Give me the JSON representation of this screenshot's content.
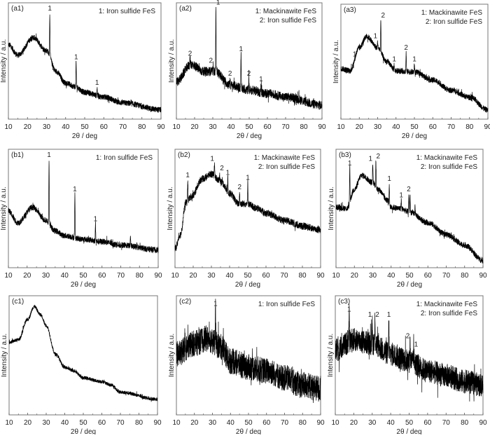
{
  "chart_data": [
    {
      "id": "a1",
      "type": "line",
      "tag": "(a1)",
      "legend": [
        "1: Iron sulfide FeS"
      ],
      "xlabel": "2θ / deg",
      "ylabel": "Intensity / a.u.",
      "xlim": [
        10,
        90
      ],
      "xticks": [
        10,
        20,
        30,
        40,
        50,
        60,
        70,
        80,
        90
      ],
      "ylim": [
        0,
        100
      ],
      "noise": 2.5,
      "baseline": [
        [
          10,
          64
        ],
        [
          15,
          55
        ],
        [
          23,
          70
        ],
        [
          30,
          59
        ],
        [
          35,
          41
        ],
        [
          40,
          31
        ],
        [
          45,
          28
        ],
        [
          50,
          23
        ],
        [
          60,
          19
        ],
        [
          70,
          14
        ],
        [
          90,
          8
        ]
      ],
      "peaks": [
        {
          "x": 31.7,
          "y": 91,
          "label": "1"
        },
        {
          "x": 45.5,
          "y": 49,
          "label": "1"
        },
        {
          "x": 56.5,
          "y": 27,
          "label": "1"
        }
      ]
    },
    {
      "id": "a2",
      "type": "line",
      "tag": "(a2)",
      "legend": [
        "1: Mackinawite FeS",
        "2: Iron sulfide FeS"
      ],
      "xlabel": "2θ / deg",
      "ylabel": "Intensity / a.u.",
      "xlim": [
        10,
        90
      ],
      "xticks": [
        10,
        20,
        30,
        40,
        50,
        60,
        70,
        80,
        90
      ],
      "ylim": [
        0,
        100
      ],
      "noise": 4,
      "baseline": [
        [
          10,
          32
        ],
        [
          18,
          47
        ],
        [
          25,
          41
        ],
        [
          31,
          41
        ],
        [
          40,
          29
        ],
        [
          50,
          25
        ],
        [
          60,
          22
        ],
        [
          70,
          19
        ],
        [
          90,
          12
        ]
      ],
      "peaks": [
        {
          "x": 17.5,
          "y": 52,
          "label": "2"
        },
        {
          "x": 30.2,
          "y": 46,
          "label": "2"
        },
        {
          "x": 31.7,
          "y": 96,
          "label": "1"
        },
        {
          "x": 39.5,
          "y": 35,
          "label": "2"
        },
        {
          "x": 45.5,
          "y": 56,
          "label": "1"
        },
        {
          "x": 49.8,
          "y": 35,
          "label": "2"
        },
        {
          "x": 56.5,
          "y": 30,
          "label": "1"
        }
      ]
    },
    {
      "id": "a3",
      "type": "line",
      "tag": "(a3)",
      "legend": [
        "1: Mackinawite FeS",
        "2: Iron sulfide FeS"
      ],
      "xlabel": "2θ / deg",
      "ylabel": "Intensity / a.u.",
      "xlim": [
        10,
        90
      ],
      "xticks": [
        10,
        20,
        30,
        40,
        50,
        60,
        70,
        80,
        90
      ],
      "ylim": [
        0,
        100
      ],
      "noise": 2.5,
      "baseline": [
        [
          10,
          44
        ],
        [
          15,
          42
        ],
        [
          20,
          62
        ],
        [
          24,
          72
        ],
        [
          30,
          62
        ],
        [
          35,
          50
        ],
        [
          40,
          42
        ],
        [
          50,
          41
        ],
        [
          60,
          34
        ],
        [
          70,
          25
        ],
        [
          80,
          19
        ],
        [
          90,
          8
        ]
      ],
      "peaks": [
        {
          "x": 17.5,
          "y": 52,
          "label": "1"
        },
        {
          "x": 30,
          "y": 68,
          "label": "1"
        },
        {
          "x": 31.7,
          "y": 86,
          "label": "2"
        },
        {
          "x": 39,
          "y": 48,
          "label": "1"
        },
        {
          "x": 45.5,
          "y": 58,
          "label": "2"
        },
        {
          "x": 50,
          "y": 48,
          "label": "1"
        }
      ]
    },
    {
      "id": "b1",
      "type": "line",
      "tag": "(b1)",
      "legend": [
        "1: Iron sulfide FeS"
      ],
      "xlabel": "2θ / deg",
      "ylabel": "Intensity / a.u.",
      "xlim": [
        10,
        90
      ],
      "xticks": [
        10,
        20,
        30,
        40,
        50,
        60,
        70,
        80,
        90
      ],
      "ylim": [
        0,
        100
      ],
      "noise": 2.5,
      "baseline": [
        [
          10,
          48
        ],
        [
          15,
          38
        ],
        [
          23,
          51
        ],
        [
          30,
          40
        ],
        [
          35,
          31
        ],
        [
          40,
          27
        ],
        [
          50,
          24
        ],
        [
          60,
          22
        ],
        [
          70,
          19
        ],
        [
          90,
          15
        ]
      ],
      "peaks": [
        {
          "x": 31.7,
          "y": 91,
          "label": "1"
        },
        {
          "x": 45.5,
          "y": 62,
          "label": "1"
        },
        {
          "x": 56.5,
          "y": 37,
          "label": "1"
        },
        {
          "x": 75.2,
          "y": 27,
          "label": ""
        }
      ]
    },
    {
      "id": "b2",
      "type": "line",
      "tag": "(b2)",
      "legend": [
        "1: Mackinawite FeS",
        "2: Iron sulfide FeS"
      ],
      "xlabel": "2θ / deg",
      "ylabel": "Intensity / a.u.",
      "xlim": [
        10,
        90
      ],
      "xticks": [
        10,
        20,
        30,
        40,
        50,
        60,
        70,
        80,
        90
      ],
      "ylim": [
        0,
        100
      ],
      "noise": 3,
      "baseline": [
        [
          10,
          16
        ],
        [
          13,
          28
        ],
        [
          16,
          55
        ],
        [
          19,
          60
        ],
        [
          25,
          75
        ],
        [
          30,
          79
        ],
        [
          35,
          73
        ],
        [
          40,
          63
        ],
        [
          45,
          54
        ],
        [
          50,
          54
        ],
        [
          55,
          50
        ],
        [
          60,
          46
        ],
        [
          70,
          40
        ],
        [
          80,
          35
        ],
        [
          90,
          32
        ]
      ],
      "peaks": [
        {
          "x": 17,
          "y": 74,
          "label": "1"
        },
        {
          "x": 31.7,
          "y": 88,
          "label": "1"
        },
        {
          "x": 34.5,
          "y": 80,
          "label": "2"
        },
        {
          "x": 39,
          "y": 76,
          "label": "1"
        },
        {
          "x": 45.5,
          "y": 64,
          "label": "2"
        },
        {
          "x": 50,
          "y": 72,
          "label": "1"
        }
      ]
    },
    {
      "id": "b3",
      "type": "line",
      "tag": "(b3)",
      "legend": [
        "1: Mackinawite FeS",
        "2: Iron sulfide FeS"
      ],
      "xlabel": "2θ / deg",
      "ylabel": "Intensity / a.u.",
      "xlim": [
        10,
        90
      ],
      "xticks": [
        10,
        20,
        30,
        40,
        50,
        60,
        70,
        80,
        90
      ],
      "ylim": [
        0,
        100
      ],
      "noise": 2.5,
      "baseline": [
        [
          10,
          51
        ],
        [
          16,
          50
        ],
        [
          20,
          66
        ],
        [
          24,
          78
        ],
        [
          30,
          72
        ],
        [
          33,
          66
        ],
        [
          38,
          57
        ],
        [
          40,
          51
        ],
        [
          45,
          50
        ],
        [
          50,
          47
        ],
        [
          60,
          38
        ],
        [
          70,
          28
        ],
        [
          80,
          19
        ],
        [
          90,
          6
        ]
      ],
      "peaks": [
        {
          "x": 17.5,
          "y": 87,
          "label": "1"
        },
        {
          "x": 30,
          "y": 88,
          "label": "1"
        },
        {
          "x": 31.7,
          "y": 90,
          "label": "2"
        },
        {
          "x": 39,
          "y": 71,
          "label": "1"
        },
        {
          "x": 45.5,
          "y": 57,
          "label": "1"
        },
        {
          "x": 49.6,
          "y": 62,
          "label": "2"
        },
        {
          "x": 50.3,
          "y": 62,
          "label": ""
        },
        {
          "x": 53,
          "y": 52,
          "label": ""
        }
      ]
    },
    {
      "id": "c1",
      "type": "line",
      "tag": "(c1)",
      "legend": [],
      "xlabel": "2θ / deg",
      "ylabel": "Intensity / a.u.",
      "xlim": [
        10,
        90
      ],
      "xticks": [
        10,
        20,
        30,
        40,
        50,
        60,
        70,
        80,
        90
      ],
      "ylim": [
        0,
        100
      ],
      "noise": 1.5,
      "baseline": [
        [
          10,
          61
        ],
        [
          15,
          63
        ],
        [
          20,
          80
        ],
        [
          23.5,
          91
        ],
        [
          27,
          84
        ],
        [
          30,
          75
        ],
        [
          35,
          51
        ],
        [
          40,
          40
        ],
        [
          45,
          37
        ],
        [
          50,
          31
        ],
        [
          60,
          28
        ],
        [
          65,
          25
        ],
        [
          70,
          19
        ],
        [
          90,
          13
        ]
      ],
      "peaks": []
    },
    {
      "id": "c2",
      "type": "line",
      "tag": "(c2)",
      "legend": [
        "1: Iron sulfide FeS"
      ],
      "xlabel": "2θ / deg",
      "ylabel": "Intensity / a.u.",
      "xlim": [
        10,
        90
      ],
      "xticks": [
        10,
        20,
        30,
        40,
        50,
        60,
        70,
        80,
        90
      ],
      "ylim": [
        0,
        100
      ],
      "noise": 11,
      "baseline": [
        [
          10,
          51
        ],
        [
          20,
          60
        ],
        [
          27,
          64
        ],
        [
          35,
          57
        ],
        [
          40,
          45
        ],
        [
          50,
          40
        ],
        [
          60,
          37
        ],
        [
          70,
          31
        ],
        [
          80,
          25
        ],
        [
          90,
          22
        ]
      ],
      "peaks": [
        {
          "x": 31.7,
          "y": 89,
          "label": "1"
        }
      ]
    },
    {
      "id": "c3",
      "type": "line",
      "tag": "(c3)",
      "legend": [
        "1: Mackinawite FeS",
        "2: Iron sulfide FeS"
      ],
      "xlabel": "2θ / deg",
      "ylabel": "Intensity / a.u.",
      "xlim": [
        10,
        90
      ],
      "xticks": [
        10,
        20,
        30,
        40,
        50,
        60,
        70,
        80,
        90
      ],
      "ylim": [
        0,
        100
      ],
      "noise": 10,
      "baseline": [
        [
          10,
          54
        ],
        [
          20,
          63
        ],
        [
          30,
          60
        ],
        [
          40,
          51
        ],
        [
          50,
          45
        ],
        [
          60,
          37
        ],
        [
          70,
          33
        ],
        [
          80,
          28
        ],
        [
          90,
          25
        ]
      ],
      "peaks": [
        {
          "x": 17.5,
          "y": 85,
          "label": "1"
        },
        {
          "x": 30,
          "y": 80,
          "label": "1"
        },
        {
          "x": 31.5,
          "y": 80,
          "label": "2"
        },
        {
          "x": 39,
          "y": 80,
          "label": "1"
        },
        {
          "x": 50.5,
          "y": 62,
          "label": "2"
        },
        {
          "x": 52.5,
          "y": 55,
          "label": "1"
        }
      ]
    }
  ]
}
